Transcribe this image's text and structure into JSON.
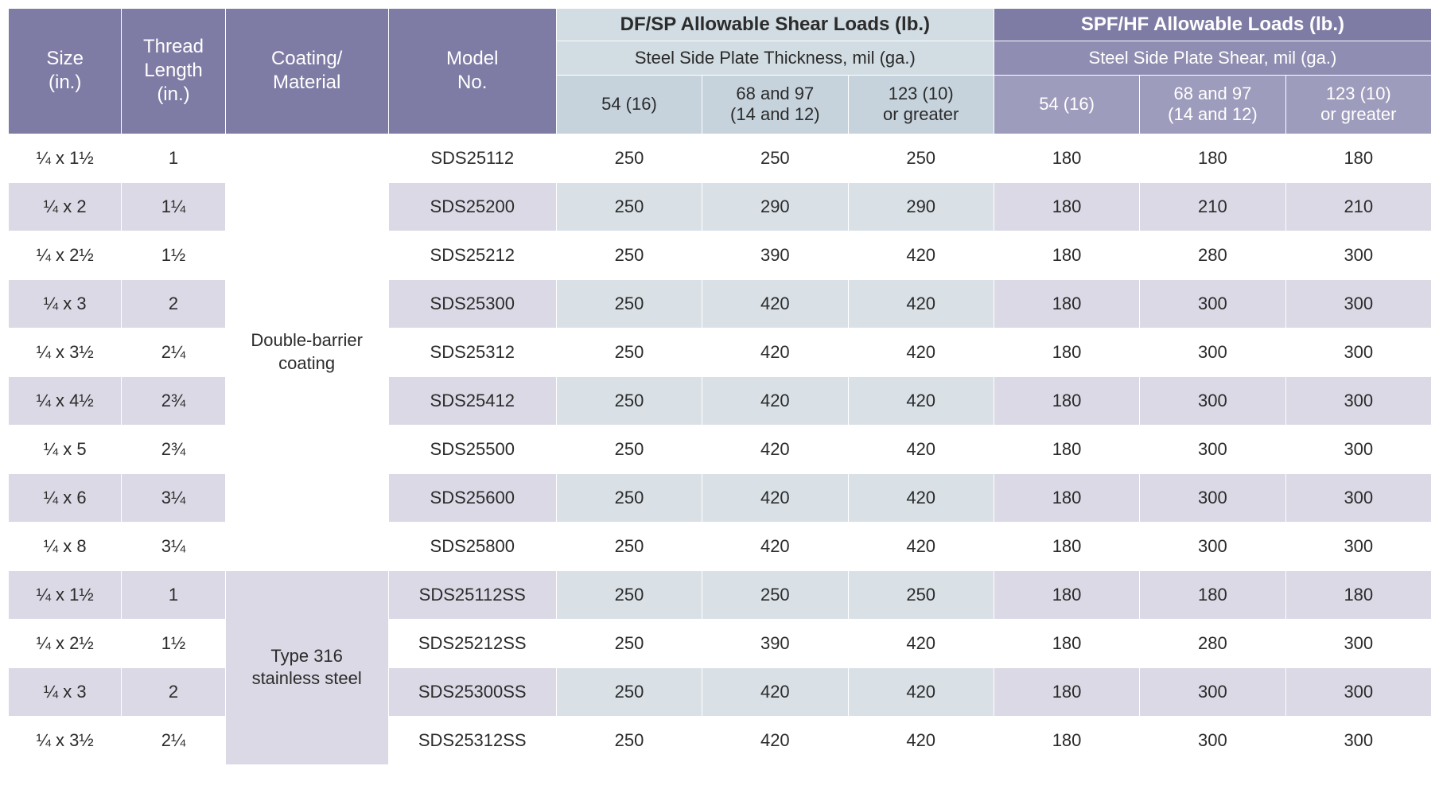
{
  "header": {
    "size": "Size\n(in.)",
    "thread": "Thread\nLength\n(in.)",
    "coating": "Coating/\nMaterial",
    "model": "Model\nNo.",
    "dfsp_top": "DF/SP Allowable Shear Loads (lb.)",
    "dfsp_sub": "Steel Side Plate Thickness, mil (ga.)",
    "spf_top": "SPF/HF Allowable Loads (lb.)",
    "spf_sub": "Steel Side Plate Shear, mil (ga.)",
    "col54": "54 (16)",
    "col68": "68 and 97\n(14 and 12)",
    "col123": "123 (10)\nor greater"
  },
  "coatings": {
    "g1": "Double-barrier\ncoating",
    "g2": "Type 316\nstainless steel"
  },
  "rows": [
    {
      "size": "¼ x 1½",
      "thread": "1",
      "model": "SDS25112",
      "d1": "250",
      "d2": "250",
      "d3": "250",
      "s1": "180",
      "s2": "180",
      "s3": "180"
    },
    {
      "size": "¼ x 2",
      "thread": "1¼",
      "model": "SDS25200",
      "d1": "250",
      "d2": "290",
      "d3": "290",
      "s1": "180",
      "s2": "210",
      "s3": "210"
    },
    {
      "size": "¼ x 2½",
      "thread": "1½",
      "model": "SDS25212",
      "d1": "250",
      "d2": "390",
      "d3": "420",
      "s1": "180",
      "s2": "280",
      "s3": "300"
    },
    {
      "size": "¼ x 3",
      "thread": "2",
      "model": "SDS25300",
      "d1": "250",
      "d2": "420",
      "d3": "420",
      "s1": "180",
      "s2": "300",
      "s3": "300"
    },
    {
      "size": "¼ x 3½",
      "thread": "2¼",
      "model": "SDS25312",
      "d1": "250",
      "d2": "420",
      "d3": "420",
      "s1": "180",
      "s2": "300",
      "s3": "300"
    },
    {
      "size": "¼ x 4½",
      "thread": "2¾",
      "model": "SDS25412",
      "d1": "250",
      "d2": "420",
      "d3": "420",
      "s1": "180",
      "s2": "300",
      "s3": "300"
    },
    {
      "size": "¼ x 5",
      "thread": "2¾",
      "model": "SDS25500",
      "d1": "250",
      "d2": "420",
      "d3": "420",
      "s1": "180",
      "s2": "300",
      "s3": "300"
    },
    {
      "size": "¼ x 6",
      "thread": "3¼",
      "model": "SDS25600",
      "d1": "250",
      "d2": "420",
      "d3": "420",
      "s1": "180",
      "s2": "300",
      "s3": "300"
    },
    {
      "size": "¼ x 8",
      "thread": "3¼",
      "model": "SDS25800",
      "d1": "250",
      "d2": "420",
      "d3": "420",
      "s1": "180",
      "s2": "300",
      "s3": "300"
    },
    {
      "size": "¼ x 1½",
      "thread": "1",
      "model": "SDS25112SS",
      "d1": "250",
      "d2": "250",
      "d3": "250",
      "s1": "180",
      "s2": "180",
      "s3": "180"
    },
    {
      "size": "¼ x 2½",
      "thread": "1½",
      "model": "SDS25212SS",
      "d1": "250",
      "d2": "390",
      "d3": "420",
      "s1": "180",
      "s2": "280",
      "s3": "300"
    },
    {
      "size": "¼ x 3",
      "thread": "2",
      "model": "SDS25300SS",
      "d1": "250",
      "d2": "420",
      "d3": "420",
      "s1": "180",
      "s2": "300",
      "s3": "300"
    },
    {
      "size": "¼ x 3½",
      "thread": "2¼",
      "model": "SDS25312SS",
      "d1": "250",
      "d2": "420",
      "d3": "420",
      "s1": "180",
      "s2": "300",
      "s3": "300"
    }
  ],
  "styling": {
    "purple": "#7e7ca4",
    "purple_mid": "#8f8db1",
    "purple_light": "#9e9cbc",
    "blue_light": "#d1dce3",
    "blue_col": "#c6d3dc",
    "alt_lav": "#dad9e5",
    "alt_blue": "#d9e1e7",
    "white": "#ffffff",
    "text": "#2b2b2b",
    "font_hdr": 24,
    "font_body": 22
  }
}
